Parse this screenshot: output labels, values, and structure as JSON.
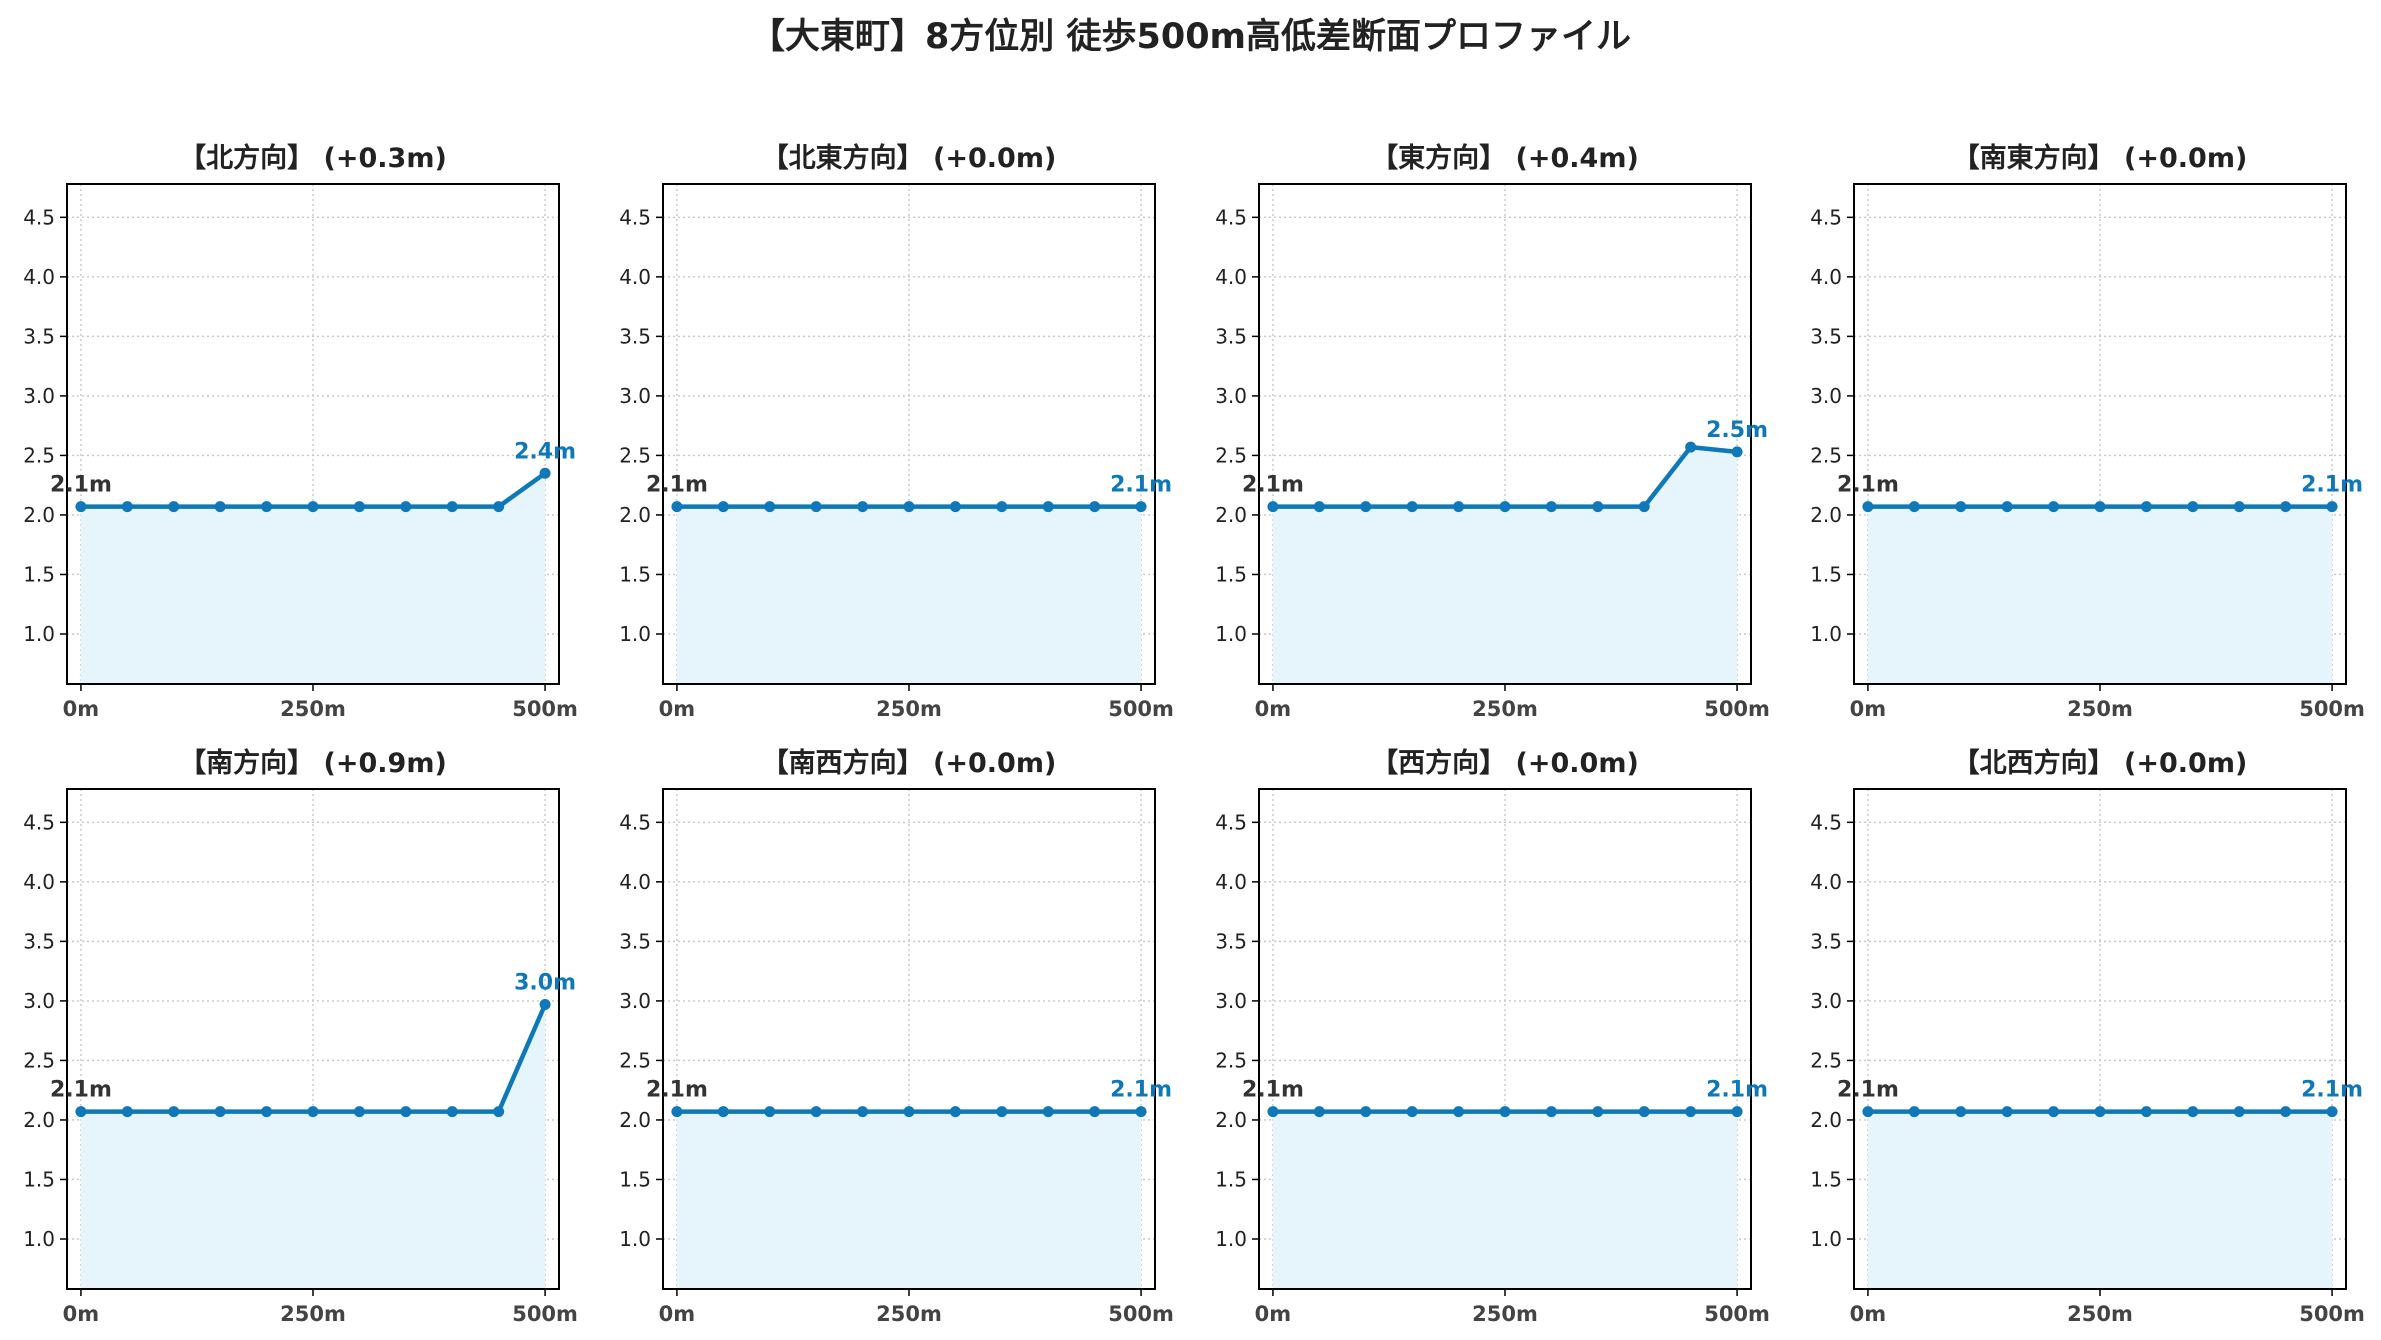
{
  "title": "【大東町】8方位別 徒歩500m高低差断面プロファイル",
  "colors": {
    "line": "#0f78b8",
    "fill": "#e6f4fb",
    "grid": "#c8c8c8",
    "label_start": "#333333",
    "label_end": "#0f78b8"
  },
  "chart_data": [
    {
      "type": "area",
      "title": "【北方向】 (+0.3m)",
      "x": [
        0,
        50,
        100,
        150,
        200,
        250,
        300,
        350,
        400,
        450,
        500
      ],
      "y": [
        2.07,
        2.07,
        2.07,
        2.07,
        2.07,
        2.07,
        2.07,
        2.07,
        2.07,
        2.07,
        2.35
      ],
      "start_label": "2.1m",
      "end_label": "2.4m",
      "xticks": [
        "0m",
        "250m",
        "500m"
      ],
      "yticks": [
        "1.0",
        "1.5",
        "2.0",
        "2.5",
        "3.0",
        "3.5",
        "4.0",
        "4.5"
      ],
      "xlim": [
        -15,
        515
      ],
      "ylim": [
        0.58,
        4.78
      ],
      "grid": true
    },
    {
      "type": "area",
      "title": "【北東方向】 (+0.0m)",
      "x": [
        0,
        50,
        100,
        150,
        200,
        250,
        300,
        350,
        400,
        450,
        500
      ],
      "y": [
        2.07,
        2.07,
        2.07,
        2.07,
        2.07,
        2.07,
        2.07,
        2.07,
        2.07,
        2.07,
        2.07
      ],
      "start_label": "2.1m",
      "end_label": "2.1m",
      "xticks": [
        "0m",
        "250m",
        "500m"
      ],
      "yticks": [
        "1.0",
        "1.5",
        "2.0",
        "2.5",
        "3.0",
        "3.5",
        "4.0",
        "4.5"
      ],
      "xlim": [
        -15,
        515
      ],
      "ylim": [
        0.58,
        4.78
      ],
      "grid": true
    },
    {
      "type": "area",
      "title": "【東方向】 (+0.4m)",
      "x": [
        0,
        50,
        100,
        150,
        200,
        250,
        300,
        350,
        400,
        450,
        500
      ],
      "y": [
        2.07,
        2.07,
        2.07,
        2.07,
        2.07,
        2.07,
        2.07,
        2.07,
        2.07,
        2.57,
        2.53
      ],
      "start_label": "2.1m",
      "end_label": "2.5m",
      "xticks": [
        "0m",
        "250m",
        "500m"
      ],
      "yticks": [
        "1.0",
        "1.5",
        "2.0",
        "2.5",
        "3.0",
        "3.5",
        "4.0",
        "4.5"
      ],
      "xlim": [
        -15,
        515
      ],
      "ylim": [
        0.58,
        4.78
      ],
      "grid": true
    },
    {
      "type": "area",
      "title": "【南東方向】 (+0.0m)",
      "x": [
        0,
        50,
        100,
        150,
        200,
        250,
        300,
        350,
        400,
        450,
        500
      ],
      "y": [
        2.07,
        2.07,
        2.07,
        2.07,
        2.07,
        2.07,
        2.07,
        2.07,
        2.07,
        2.07,
        2.07
      ],
      "start_label": "2.1m",
      "end_label": "2.1m",
      "xticks": [
        "0m",
        "250m",
        "500m"
      ],
      "yticks": [
        "1.0",
        "1.5",
        "2.0",
        "2.5",
        "3.0",
        "3.5",
        "4.0",
        "4.5"
      ],
      "xlim": [
        -15,
        515
      ],
      "ylim": [
        0.58,
        4.78
      ],
      "grid": true
    },
    {
      "type": "area",
      "title": "【南方向】 (+0.9m)",
      "x": [
        0,
        50,
        100,
        150,
        200,
        250,
        300,
        350,
        400,
        450,
        500
      ],
      "y": [
        2.07,
        2.07,
        2.07,
        2.07,
        2.07,
        2.07,
        2.07,
        2.07,
        2.07,
        2.07,
        2.97
      ],
      "start_label": "2.1m",
      "end_label": "3.0m",
      "xticks": [
        "0m",
        "250m",
        "500m"
      ],
      "yticks": [
        "1.0",
        "1.5",
        "2.0",
        "2.5",
        "3.0",
        "3.5",
        "4.0",
        "4.5"
      ],
      "xlim": [
        -15,
        515
      ],
      "ylim": [
        0.58,
        4.78
      ],
      "grid": true
    },
    {
      "type": "area",
      "title": "【南西方向】 (+0.0m)",
      "x": [
        0,
        50,
        100,
        150,
        200,
        250,
        300,
        350,
        400,
        450,
        500
      ],
      "y": [
        2.07,
        2.07,
        2.07,
        2.07,
        2.07,
        2.07,
        2.07,
        2.07,
        2.07,
        2.07,
        2.07
      ],
      "start_label": "2.1m",
      "end_label": "2.1m",
      "xticks": [
        "0m",
        "250m",
        "500m"
      ],
      "yticks": [
        "1.0",
        "1.5",
        "2.0",
        "2.5",
        "3.0",
        "3.5",
        "4.0",
        "4.5"
      ],
      "xlim": [
        -15,
        515
      ],
      "ylim": [
        0.58,
        4.78
      ],
      "grid": true
    },
    {
      "type": "area",
      "title": "【西方向】 (+0.0m)",
      "x": [
        0,
        50,
        100,
        150,
        200,
        250,
        300,
        350,
        400,
        450,
        500
      ],
      "y": [
        2.07,
        2.07,
        2.07,
        2.07,
        2.07,
        2.07,
        2.07,
        2.07,
        2.07,
        2.07,
        2.07
      ],
      "start_label": "2.1m",
      "end_label": "2.1m",
      "xticks": [
        "0m",
        "250m",
        "500m"
      ],
      "yticks": [
        "1.0",
        "1.5",
        "2.0",
        "2.5",
        "3.0",
        "3.5",
        "4.0",
        "4.5"
      ],
      "xlim": [
        -15,
        515
      ],
      "ylim": [
        0.58,
        4.78
      ],
      "grid": true
    },
    {
      "type": "area",
      "title": "【北西方向】 (+0.0m)",
      "x": [
        0,
        50,
        100,
        150,
        200,
        250,
        300,
        350,
        400,
        450,
        500
      ],
      "y": [
        2.07,
        2.07,
        2.07,
        2.07,
        2.07,
        2.07,
        2.07,
        2.07,
        2.07,
        2.07,
        2.07
      ],
      "start_label": "2.1m",
      "end_label": "2.1m",
      "xticks": [
        "0m",
        "250m",
        "500m"
      ],
      "yticks": [
        "1.0",
        "1.5",
        "2.0",
        "2.5",
        "3.0",
        "3.5",
        "4.0",
        "4.5"
      ],
      "xlim": [
        -15,
        515
      ],
      "ylim": [
        0.58,
        4.78
      ],
      "grid": true
    }
  ]
}
